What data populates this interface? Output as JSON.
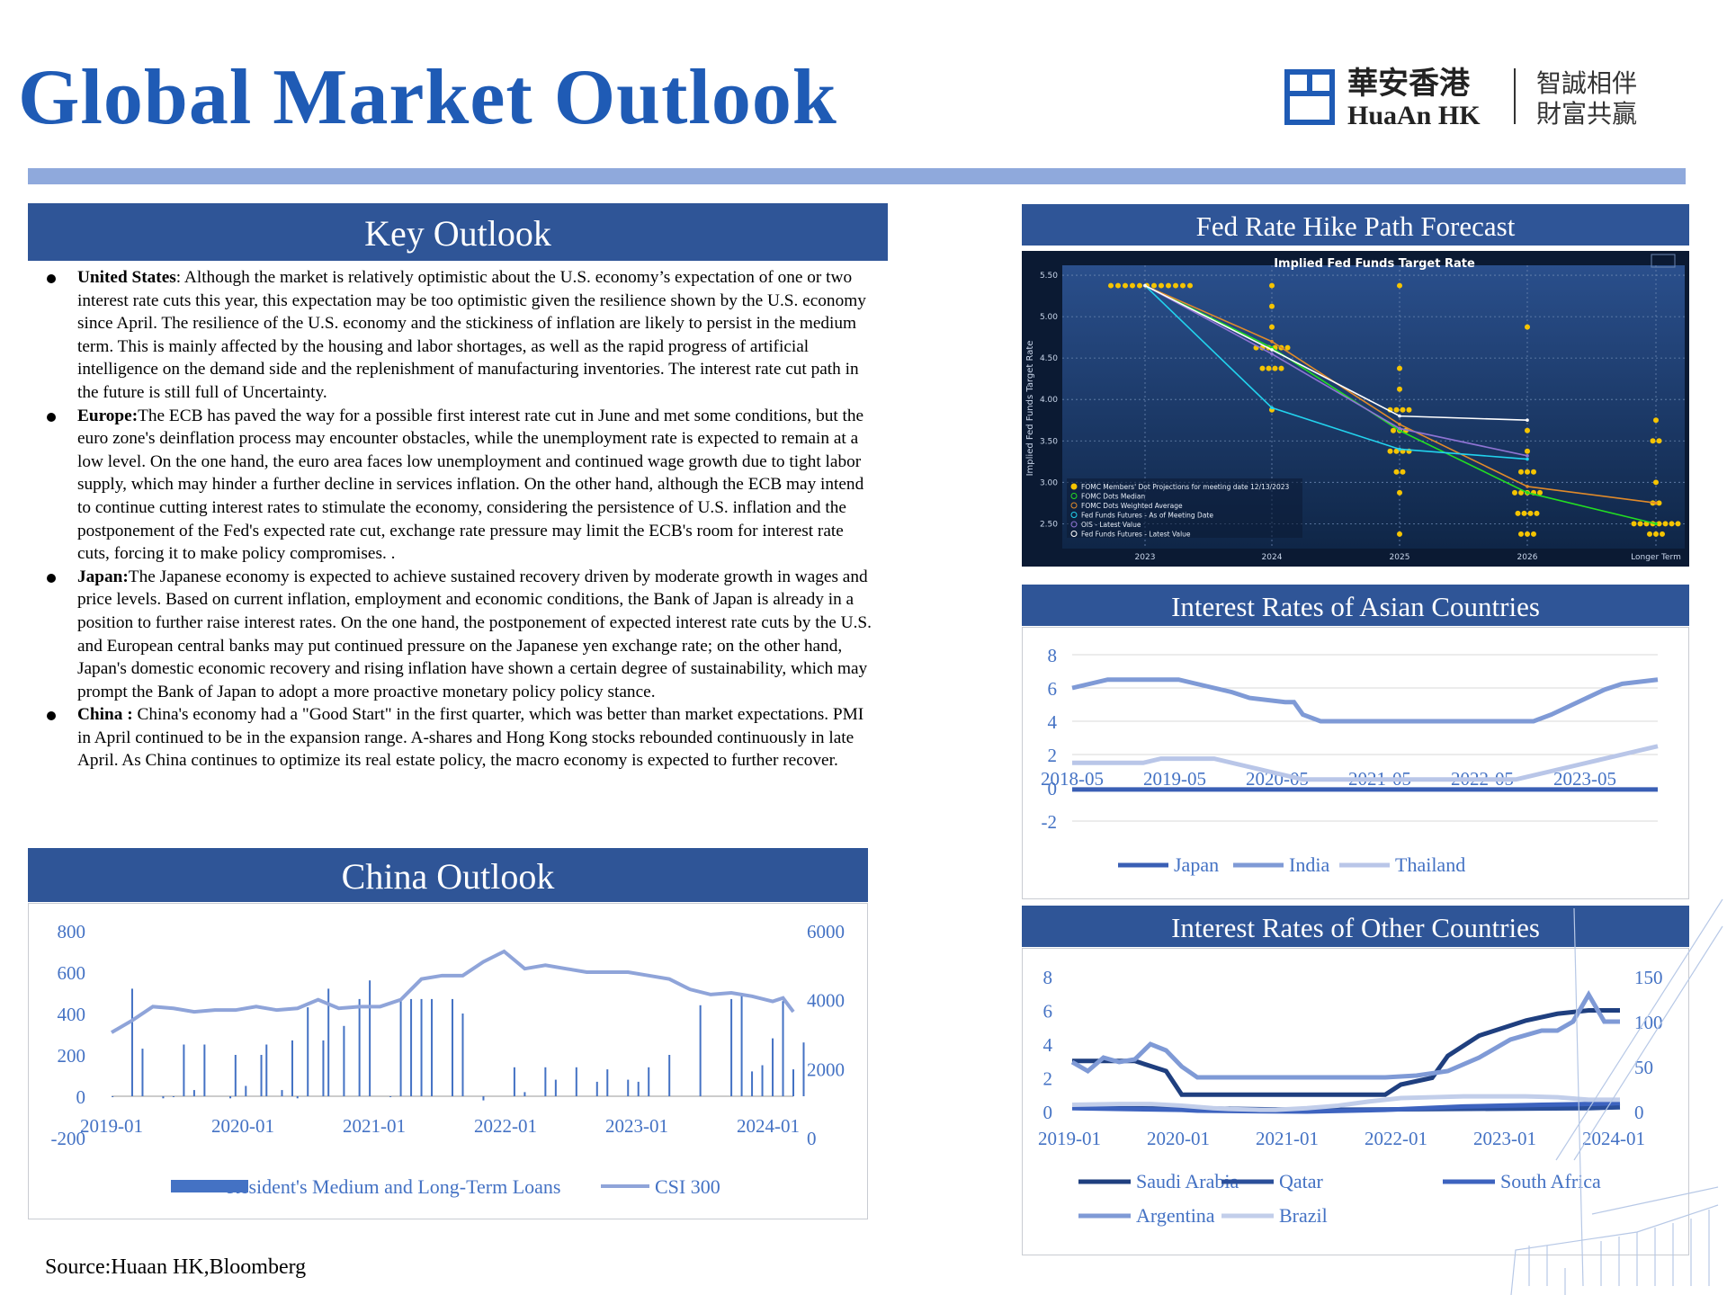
{
  "page": {
    "title": "Global Market Outlook",
    "source": "Source:Huaan HK,Bloomberg"
  },
  "logo": {
    "cn_name": "華安香港",
    "en_name": "HuaAn HK",
    "slogan_line1": "智誠相伴",
    "slogan_line2": "財富共贏"
  },
  "key_outlook": {
    "heading": "Key Outlook",
    "items": [
      {
        "region": "United States",
        "sep": ": ",
        "text": "Although the market is relatively optimistic about the U.S. economy’s expectation of one or two interest rate cuts this year, this expectation may be too optimistic given the resilience shown by the U.S. economy since April. The resilience of the U.S. economy and the stickiness of inflation are likely to persist in the medium term. This is mainly affected by the housing and labor shortages, as well as the rapid progress of artificial intelligence on the demand side and the replenishment of manufacturing inventories. The interest rate cut path in the future is still full of  Uncertainty."
      },
      {
        "region": "Europe:",
        "sep": "",
        "text": "The ECB has paved the way for a possible first interest rate cut in June and met some conditions, but the euro zone's deinflation process may encounter obstacles, while the unemployment rate is expected to remain at a low level. On the one hand, the euro area faces low unemployment and continued wage growth due to tight labor supply, which may hinder a further decline in services inflation. On the other hand, although the ECB may intend to continue cutting interest rates to stimulate the economy, considering the persistence of U.S. inflation and the postponement of the Fed's expected rate cut, exchange rate pressure may limit the ECB's room for interest rate cuts, forcing it to make policy compromises. ."
      },
      {
        "region": "Japan:",
        "sep": "",
        "text": "The Japanese economy is expected to achieve sustained recovery driven by moderate growth in wages and price levels. Based on current inflation, employment and economic conditions, the Bank of Japan is already in a position to further raise interest rates. On the one hand, the postponement of expected interest rate cuts by the U.S. and European central banks may put continued pressure on the Japanese yen exchange rate; on the other hand, Japan's domestic economic recovery and rising inflation have shown a certain degree of sustainability, which may prompt the Bank of Japan to adopt a more proactive monetary policy policy stance."
      },
      {
        "region": "China :",
        "sep": " ",
        "text": "China's economy had a \"Good Start\" in the first quarter, which was better than market expectations. PMI in April continued to be in the expansion range. A-shares and Hong Kong stocks rebounded continuously in late April. As China continues to optimize its real estate policy, the macro economy is expected to further recover."
      }
    ]
  },
  "china_outlook": {
    "heading": "China Outlook"
  },
  "fed_panel": {
    "heading": "Fed Rate Hike Path Forecast"
  },
  "asia_panel": {
    "heading": "Interest Rates of Asian Countries"
  },
  "other_panel": {
    "heading": "Interest Rates of Other Countries"
  },
  "chart_data": [
    {
      "id": "china",
      "type": "bar+line",
      "x_ticks": [
        "2019-01",
        "2020-01",
        "2021-01",
        "2022-01",
        "2023-01",
        "2024-01"
      ],
      "y_left_ticks": [
        "800",
        "600",
        "400",
        "200",
        "0",
        "-200"
      ],
      "y_right_ticks": [
        "6000",
        "4000",
        "2000",
        "0"
      ],
      "ylim_left": [
        -200,
        800
      ],
      "ylim_right": [
        0,
        6000
      ],
      "series": [
        {
          "name": "Resident's Medium and Long-Term Loans",
          "type": "bar",
          "axis": "left",
          "color": "#4472c4",
          "x": [
            0.1,
            2.0,
            3.0,
            5.0,
            6.0,
            7.0,
            8.0,
            9.0,
            11.5,
            12.0,
            13.0,
            14.5,
            15.0,
            16.5,
            17.5,
            18.0,
            19.0,
            20.5,
            21.0,
            22.5,
            24.0,
            25.0,
            27.0,
            28.0,
            29.0,
            30.0,
            31.0,
            33.0,
            34.0,
            36.0,
            39.0,
            40.0,
            42.0,
            43.0,
            45.0,
            47.0,
            48.0,
            50.0,
            51.0,
            52.0,
            54.0,
            57.0,
            60.0,
            61.0,
            62.0,
            63.0,
            64.0,
            65.0,
            66.0,
            67.0
          ],
          "values": [
            0,
            520,
            230,
            -10,
            0,
            250,
            30,
            250,
            -10,
            200,
            50,
            200,
            250,
            30,
            270,
            -10,
            430,
            270,
            520,
            340,
            470,
            560,
            0,
            470,
            470,
            470,
            470,
            470,
            400,
            -20,
            140,
            20,
            140,
            80,
            140,
            70,
            130,
            80,
            70,
            140,
            200,
            440,
            470,
            500,
            120,
            150,
            280,
            460,
            130,
            260
          ]
        },
        {
          "name": "CSI 300",
          "type": "line",
          "axis": "right",
          "color": "#8fa4d9",
          "x": [
            0,
            2,
            4,
            6,
            8,
            10,
            12,
            14,
            16,
            18,
            20,
            22,
            24,
            26,
            28,
            30,
            32,
            34,
            36,
            38,
            40,
            42,
            44,
            46,
            48,
            50,
            52,
            54,
            56,
            58,
            60,
            62,
            64,
            65,
            66
          ],
          "values": [
            3050,
            3400,
            3800,
            3750,
            3650,
            3700,
            3700,
            3800,
            3700,
            3750,
            4000,
            3750,
            3800,
            3800,
            4000,
            4600,
            4700,
            4700,
            5100,
            5400,
            4900,
            5000,
            4900,
            4800,
            4800,
            4800,
            4700,
            4600,
            4300,
            4150,
            4200,
            4100,
            3950,
            4050,
            3650
          ]
        }
      ]
    },
    {
      "id": "fed",
      "type": "scatter+line",
      "title": "Implied Fed Funds Target Rate",
      "ylabel": "Implied Fed Funds Target Rate",
      "x_ticks": [
        "2023",
        "2024",
        "2025",
        "2026",
        "Longer Term"
      ],
      "y_ticks": [
        "5.50",
        "5.00",
        "4.50",
        "4.00",
        "3.50",
        "3.00",
        "2.50"
      ],
      "ylim": [
        2.2,
        5.6
      ],
      "legend": [
        "FOMC Members' Dot Projections for meeting date 12/13/2023",
        "FOMC Dots Median",
        "FOMC Dots Weighted Average",
        "Fed Funds Futures - As of Meeting Date",
        "OIS - Latest Value",
        "Fed Funds Futures - Latest Value"
      ],
      "colors": {
        "dots": "#f5c400",
        "median": "#22dd22",
        "weighted": "#e08a2a",
        "ff_meeting": "#22d3ee",
        "ois": "#8f74d4",
        "ff_latest": "#ffffff"
      },
      "lines": [
        {
          "name": "FOMC Dots Median",
          "x": [
            0,
            1,
            2,
            3,
            4
          ],
          "y": [
            5.375,
            4.625,
            3.625,
            2.875,
            2.5
          ]
        },
        {
          "name": "FOMC Dots Weighted Average",
          "x": [
            0,
            1,
            2,
            3,
            4
          ],
          "y": [
            5.375,
            4.7,
            3.7,
            2.95,
            2.75
          ]
        },
        {
          "name": "Fed Funds Futures - As of Meeting Date",
          "x": [
            0,
            1,
            2,
            3
          ],
          "y": [
            5.375,
            3.9,
            3.4,
            3.28
          ]
        },
        {
          "name": "OIS - Latest Value",
          "x": [
            0,
            1,
            2,
            3
          ],
          "y": [
            5.375,
            4.55,
            3.65,
            3.32
          ]
        },
        {
          "name": "Fed Funds Futures - Latest Value",
          "x": [
            0,
            1,
            2,
            3
          ],
          "y": [
            5.375,
            4.6,
            3.8,
            3.75
          ]
        }
      ]
    },
    {
      "id": "asia",
      "type": "line",
      "x_ticks": [
        "2018-05",
        "2019-05",
        "2020-05",
        "2021-05",
        "2022-05",
        "2023-05"
      ],
      "y_ticks": [
        "8",
        "6",
        "4",
        "2",
        "0",
        "-2"
      ],
      "ylim": [
        -2,
        8
      ],
      "series": [
        {
          "name": "Japan",
          "color": "#3a5fb5",
          "x": [
            0,
            66
          ],
          "values": [
            -0.1,
            -0.1
          ]
        },
        {
          "name": "India",
          "color": "#7f9ad6",
          "x": [
            0,
            2,
            4,
            12,
            14,
            16,
            18,
            20,
            24,
            25,
            26,
            28,
            52,
            54,
            56,
            58,
            60,
            62,
            66
          ],
          "values": [
            6,
            6.25,
            6.5,
            6.5,
            6.25,
            6,
            5.75,
            5.4,
            5.15,
            5.15,
            4.4,
            4,
            4,
            4.4,
            4.9,
            5.4,
            5.9,
            6.25,
            6.5
          ]
        },
        {
          "name": "Thailand",
          "color": "#b9c6e8",
          "x": [
            0,
            8,
            10,
            16,
            18,
            20,
            22,
            24,
            26,
            50,
            54,
            58,
            62,
            66
          ],
          "values": [
            1.5,
            1.5,
            1.75,
            1.75,
            1.5,
            1.25,
            1,
            0.75,
            0.5,
            0.5,
            1,
            1.5,
            2,
            2.5
          ]
        }
      ]
    },
    {
      "id": "other",
      "type": "line",
      "x_ticks": [
        "2019-01",
        "2020-01",
        "2021-01",
        "2022-01",
        "2023-01",
        "2024-01"
      ],
      "y_left_ticks": [
        "8",
        "6",
        "4",
        "2",
        "0"
      ],
      "y_right_ticks": [
        "150",
        "100",
        "50",
        "0"
      ],
      "ylim_left": [
        0,
        8
      ],
      "ylim_right": [
        0,
        150
      ],
      "series": [
        {
          "name": "Saudi Arabia",
          "color": "#1f3f7f",
          "axis": "left",
          "x": [
            0,
            8,
            10,
            12,
            14,
            30,
            38,
            40,
            42,
            46,
            48,
            52,
            58,
            62,
            66,
            70
          ],
          "values": [
            3,
            3,
            2.7,
            2.4,
            1,
            1,
            1,
            1,
            1.6,
            2,
            3.3,
            4.5,
            5.4,
            5.8,
            6,
            6
          ]
        },
        {
          "name": "Qatar",
          "color": "#2b4f9a",
          "axis": "left",
          "x": [
            0,
            12,
            14,
            30,
            66,
            70
          ],
          "values": [
            0.3,
            0.3,
            0.2,
            0.1,
            0.2,
            0.25
          ]
        },
        {
          "name": "South Africa",
          "color": "#3d63bf",
          "axis": "left",
          "x": [
            0,
            14,
            16,
            30,
            40,
            50,
            60,
            66,
            70
          ],
          "values": [
            0.2,
            0.1,
            0.05,
            0,
            0.1,
            0.3,
            0.4,
            0.45,
            0.5
          ]
        },
        {
          "name": "Argentina",
          "color": "#7f9ad6",
          "axis": "right",
          "x": [
            0,
            2,
            4,
            6,
            8,
            10,
            12,
            14,
            16,
            18,
            30,
            36,
            40,
            44,
            48,
            52,
            56,
            60,
            62,
            64,
            66,
            68,
            70
          ],
          "values": [
            55,
            45,
            60,
            55,
            58,
            75,
            68,
            50,
            38,
            38,
            38,
            38,
            38,
            40,
            45,
            60,
            80,
            90,
            90,
            100,
            130,
            100,
            100
          ]
        },
        {
          "name": "Brazil",
          "color": "#c2ceea",
          "axis": "left",
          "x": [
            0,
            6,
            10,
            14,
            18,
            20,
            24,
            26,
            30,
            34,
            38,
            42,
            46,
            50,
            54,
            58,
            62,
            66,
            70
          ],
          "values": [
            0.4,
            0.45,
            0.45,
            0.35,
            0.2,
            0.15,
            0.1,
            0.1,
            0.2,
            0.35,
            0.6,
            0.8,
            0.85,
            0.9,
            0.9,
            0.9,
            0.85,
            0.7,
            0.7
          ]
        }
      ]
    }
  ]
}
